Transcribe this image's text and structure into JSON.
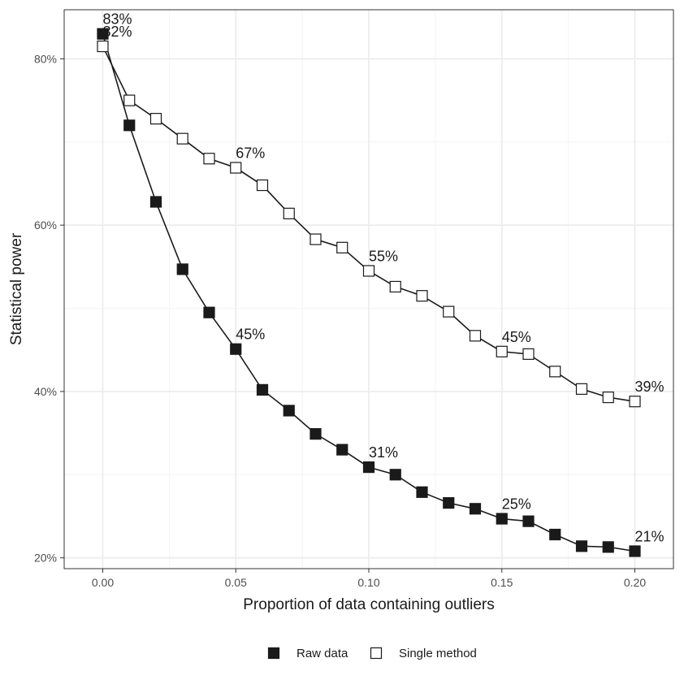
{
  "chart_data": {
    "type": "line",
    "title": "",
    "xlabel": "Proportion of data containing outliers",
    "ylabel": "Statistical power",
    "xlim": [
      -0.0145,
      0.2145
    ],
    "ylim": [
      18.7,
      85.9
    ],
    "grid": true,
    "legend_position": "bottom",
    "x_ticks": [
      0.0,
      0.05,
      0.1,
      0.15,
      0.2
    ],
    "x_tick_labels": [
      "0.00",
      "0.05",
      "0.10",
      "0.15",
      "0.20"
    ],
    "y_ticks": [
      20,
      40,
      60,
      80
    ],
    "y_tick_labels": [
      "20%",
      "40%",
      "60%",
      "80%"
    ],
    "x": [
      0.0,
      0.01,
      0.02,
      0.03,
      0.04,
      0.05,
      0.06,
      0.07,
      0.08,
      0.09,
      0.1,
      0.11,
      0.12,
      0.13,
      0.14,
      0.15,
      0.16,
      0.17,
      0.18,
      0.19,
      0.2
    ],
    "series": [
      {
        "name": "Raw data",
        "marker": "filled-square",
        "values": [
          83.0,
          72.0,
          62.8,
          54.7,
          49.5,
          45.1,
          40.2,
          37.7,
          34.9,
          33.0,
          30.9,
          30.0,
          27.9,
          26.6,
          25.9,
          24.7,
          24.4,
          22.8,
          21.4,
          21.3,
          20.8
        ]
      },
      {
        "name": "Single method",
        "marker": "open-square",
        "values": [
          81.5,
          75.0,
          72.8,
          70.4,
          68.0,
          66.9,
          64.8,
          61.4,
          58.3,
          57.3,
          54.5,
          52.6,
          51.5,
          49.6,
          46.7,
          44.8,
          44.5,
          42.4,
          40.3,
          39.3,
          38.8
        ]
      }
    ],
    "annotations": [
      {
        "series": "Raw data",
        "x": 0.0,
        "label": "83%"
      },
      {
        "series": "Raw data",
        "x": 0.05,
        "label": "45%"
      },
      {
        "series": "Raw data",
        "x": 0.1,
        "label": "31%"
      },
      {
        "series": "Raw data",
        "x": 0.15,
        "label": "25%"
      },
      {
        "series": "Raw data",
        "x": 0.2,
        "label": "21%"
      },
      {
        "series": "Single method",
        "x": 0.0,
        "label": "82%"
      },
      {
        "series": "Single method",
        "x": 0.05,
        "label": "67%"
      },
      {
        "series": "Single method",
        "x": 0.1,
        "label": "55%"
      },
      {
        "series": "Single method",
        "x": 0.15,
        "label": "45%"
      },
      {
        "series": "Single method",
        "x": 0.2,
        "label": "39%"
      }
    ],
    "legend": [
      {
        "name": "Raw data",
        "marker": "filled-square"
      },
      {
        "name": "Single method",
        "marker": "open-square"
      }
    ],
    "colors": {
      "line": "#1a1a1a",
      "filled_marker": "#1a1a1a",
      "open_marker_fill": "#ffffff",
      "grid_major": "#ebebeb",
      "grid_minor": "#f4f4f4",
      "panel_border": "#333333"
    }
  }
}
